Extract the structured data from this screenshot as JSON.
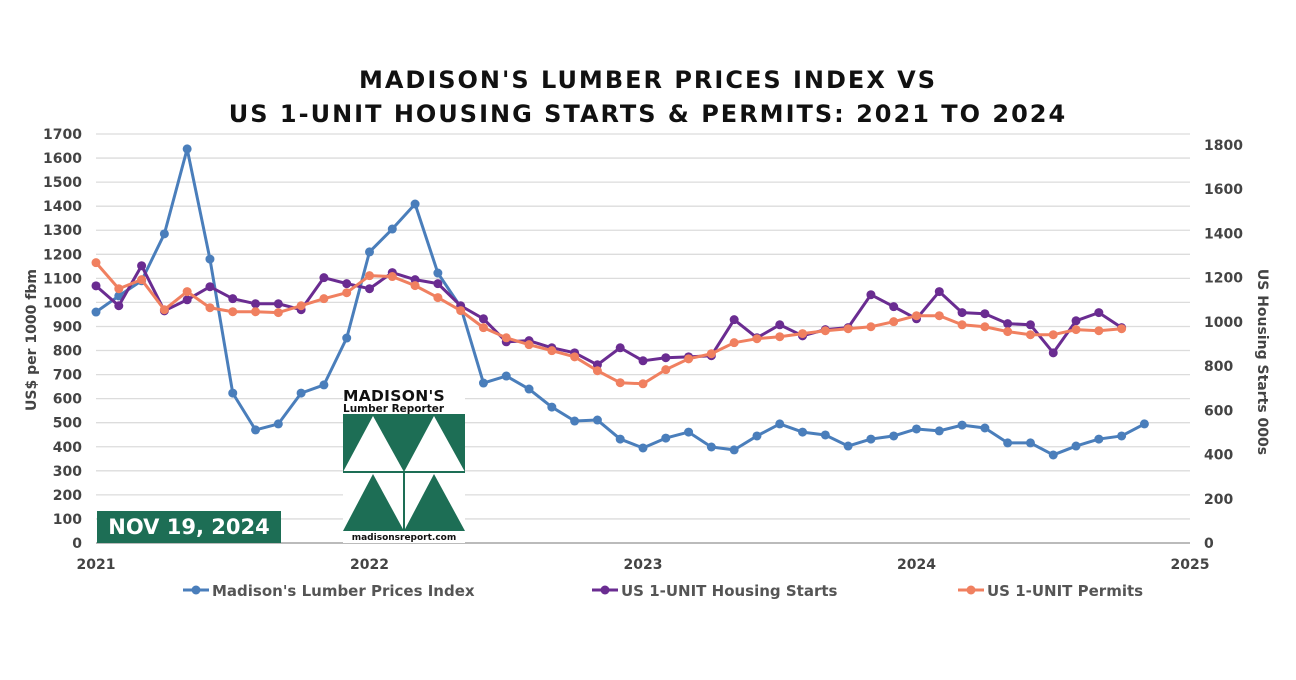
{
  "chart_data": {
    "type": "line",
    "title_line1": "MADISON'S LUMBER PRICES INDEX VS",
    "title_line2": "US 1-UNIT HOUSING STARTS & PERMITS: 2021 TO 2024",
    "ylabel_left": "US$ per 1000 fbm",
    "ylabel_right": "US Housing Starts 000s",
    "ylim_left": [
      0,
      1700
    ],
    "ylim_right": [
      0,
      1800
    ],
    "yticks_left": [
      "0",
      "100",
      "200",
      "300",
      "400",
      "500",
      "600",
      "700",
      "800",
      "900",
      "1000",
      "1100",
      "1200",
      "1300",
      "1400",
      "1500",
      "1600",
      "1700"
    ],
    "yticks_right": [
      "0",
      "200",
      "400",
      "600",
      "800",
      "1000",
      "1200",
      "1400",
      "1600",
      "1800"
    ],
    "xticks": [
      "2021",
      "2022",
      "2023",
      "2024",
      "2025"
    ],
    "xlim": [
      "2021-01",
      "2025-01"
    ],
    "x_start": "2021-01",
    "x_frequency": "monthly",
    "grid": true,
    "legend_position": "bottom",
    "series": [
      {
        "name": "Madison's Lumber Prices Index",
        "axis": "left",
        "color": "#4a7ebb",
        "values": [
          960,
          1027,
          1090,
          1285,
          1638,
          1180,
          623,
          470,
          495,
          623,
          657,
          852,
          1210,
          1305,
          1409,
          1122,
          981,
          665,
          694,
          640,
          565,
          507,
          511,
          432,
          395,
          436,
          461,
          399,
          387,
          445,
          495,
          461,
          449,
          403,
          432,
          445,
          474,
          466,
          490,
          478,
          416,
          416,
          366,
          403,
          432,
          445,
          495
        ]
      },
      {
        "name": "US 1-UNIT Housing Starts",
        "axis": "right",
        "color": "#6a2c91",
        "values": [
          1163,
          1073,
          1254,
          1050,
          1100,
          1159,
          1105,
          1082,
          1082,
          1055,
          1200,
          1173,
          1150,
          1223,
          1191,
          1173,
          1073,
          1014,
          910,
          915,
          883,
          860,
          806,
          883,
          824,
          838,
          842,
          847,
          1010,
          928,
          987,
          937,
          965,
          974,
          1123,
          1069,
          1014,
          1137,
          1042,
          1037,
          992,
          987,
          860,
          1005,
          1042,
          974
        ]
      },
      {
        "name": "US 1-UNIT Permits",
        "axis": "right",
        "color": "#f08060",
        "values": [
          1268,
          1150,
          1191,
          1055,
          1137,
          1064,
          1046,
          1046,
          1042,
          1073,
          1105,
          1132,
          1209,
          1205,
          1164,
          1110,
          1051,
          974,
          928,
          897,
          870,
          842,
          779,
          725,
          720,
          784,
          833,
          856,
          906,
          924,
          933,
          947,
          960,
          969,
          978,
          1001,
          1028,
          1028,
          987,
          978,
          956,
          942,
          942,
          965,
          960,
          969
        ]
      }
    ]
  },
  "badge": {
    "date": "NOV 19, 2024",
    "color": "#1d6e55"
  },
  "logo": {
    "line1": "MADISON'S",
    "line2": "Lumber Reporter",
    "url": "madisonsreport.com",
    "color": "#1d6e55"
  }
}
